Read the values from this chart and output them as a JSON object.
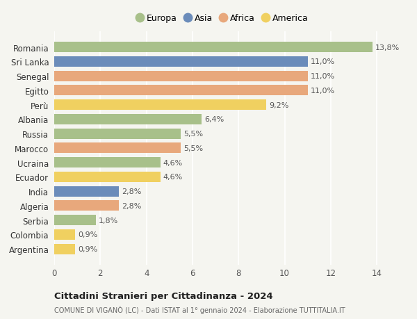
{
  "countries": [
    "Romania",
    "Sri Lanka",
    "Senegal",
    "Egitto",
    "Perù",
    "Albania",
    "Russia",
    "Marocco",
    "Ucraina",
    "Ecuador",
    "India",
    "Algeria",
    "Serbia",
    "Colombia",
    "Argentina"
  ],
  "values": [
    13.8,
    11.0,
    11.0,
    11.0,
    9.2,
    6.4,
    5.5,
    5.5,
    4.6,
    4.6,
    2.8,
    2.8,
    1.8,
    0.9,
    0.9
  ],
  "labels": [
    "13,8%",
    "11,0%",
    "11,0%",
    "11,0%",
    "9,2%",
    "6,4%",
    "5,5%",
    "5,5%",
    "4,6%",
    "4,6%",
    "2,8%",
    "2,8%",
    "1,8%",
    "0,9%",
    "0,9%"
  ],
  "bar_colors": [
    "#a8c08a",
    "#6b8cba",
    "#e8a87c",
    "#e8a87c",
    "#f0d060",
    "#a8c08a",
    "#a8c08a",
    "#e8a87c",
    "#a8c08a",
    "#f0d060",
    "#6b8cba",
    "#e8a87c",
    "#a8c08a",
    "#f0d060",
    "#f0d060"
  ],
  "legend_order": [
    "Europa",
    "Asia",
    "Africa",
    "America"
  ],
  "legend_colors": [
    "#a8c08a",
    "#6b8cba",
    "#e8a87c",
    "#f0d060"
  ],
  "title": "Cittadini Stranieri per Cittadinanza - 2024",
  "subtitle": "COMUNE DI VIGANÒ (LC) - Dati ISTAT al 1° gennaio 2024 - Elaborazione TUTTITALIA.IT",
  "xlim": [
    0,
    15.2
  ],
  "xticks": [
    0,
    2,
    4,
    6,
    8,
    10,
    12,
    14
  ],
  "background_color": "#f5f5f0",
  "grid_color": "#ffffff",
  "bar_height": 0.72,
  "label_fontsize": 8,
  "ytick_fontsize": 8.5,
  "xtick_fontsize": 8.5
}
